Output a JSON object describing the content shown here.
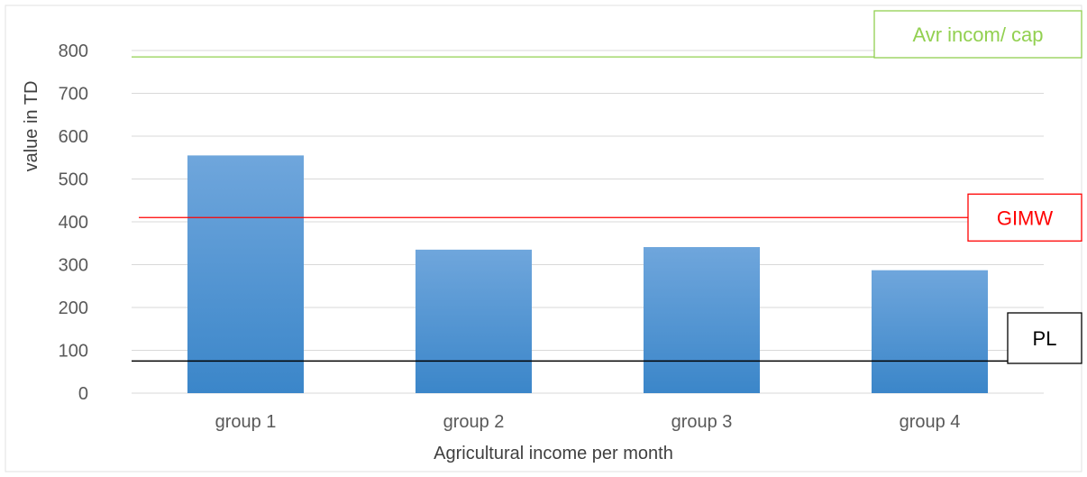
{
  "chart_data": {
    "type": "bar",
    "title": "",
    "xlabel": "Agricultural income per month",
    "ylabel": "value in TD",
    "categories": [
      "group 1",
      "group 2",
      "group 3",
      "group 4"
    ],
    "values": [
      555,
      335,
      341,
      287
    ],
    "ylim": [
      0,
      800
    ],
    "yticks": [
      0,
      100,
      200,
      300,
      400,
      500,
      600,
      700,
      800
    ],
    "grid": true,
    "legend": "none",
    "reference_lines": [
      {
        "label": "Avr  incom/ cap",
        "value": 785,
        "color": "#92d050"
      },
      {
        "label": "GIMW",
        "value": 410,
        "color": "#ff0000"
      },
      {
        "label": "PL",
        "value": 75,
        "color": "#000000"
      }
    ],
    "colors": {
      "bar_top": "#6fa6dc",
      "bar_bottom": "#3b86c9",
      "grid": "#d9d9d9",
      "axis_text": "#595959",
      "frame": "#d9d9d9"
    }
  }
}
